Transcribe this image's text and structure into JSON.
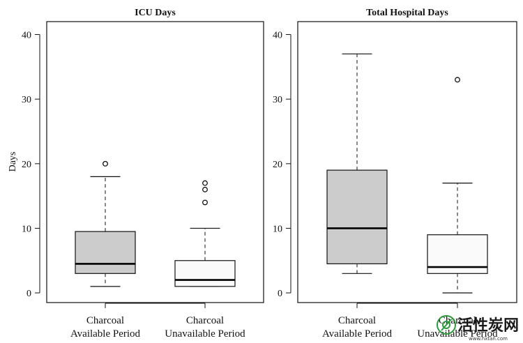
{
  "chart_data": [
    {
      "type": "boxplot",
      "title": "ICU Days",
      "ylabel": "Days",
      "ylim": [
        -1.5,
        42
      ],
      "yticks": [
        0,
        10,
        20,
        30,
        40
      ],
      "categories": [
        "Charcoal\nAvailable Period",
        "Charcoal\nUnavailable Period"
      ],
      "boxes": [
        {
          "whisker_low": 1,
          "q1": 3,
          "median": 4.5,
          "q3": 9.5,
          "whisker_high": 18,
          "outliers": [
            20
          ],
          "fill": "#cccccc"
        },
        {
          "whisker_low": 1,
          "q1": 1,
          "median": 2,
          "q3": 5,
          "whisker_high": 10,
          "outliers": [
            14,
            16,
            17
          ],
          "fill": "#fafafa"
        }
      ]
    },
    {
      "type": "boxplot",
      "title": "Total Hospital Days",
      "ylabel": "",
      "ylim": [
        -1.5,
        42
      ],
      "yticks": [
        0,
        10,
        20,
        30,
        40
      ],
      "categories": [
        "Charcoal\nAvailable Period",
        "Charcoal\nUnavailable Period"
      ],
      "boxes": [
        {
          "whisker_low": 3,
          "q1": 4.5,
          "median": 10,
          "q3": 19,
          "whisker_high": 37,
          "outliers": [],
          "fill": "#cccccc"
        },
        {
          "whisker_low": 0,
          "q1": 3,
          "median": 4,
          "q3": 9,
          "whisker_high": 17,
          "outliers": [
            33
          ],
          "fill": "#fafafa"
        }
      ]
    }
  ],
  "watermark": {
    "text": "活性炭网",
    "url": "www.hxtan.com",
    "color": "#2e9a3c"
  }
}
